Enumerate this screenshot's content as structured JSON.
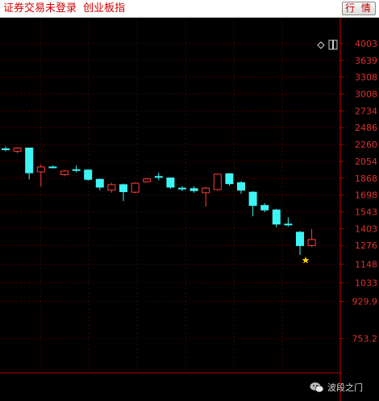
{
  "toolbar": {
    "title": "证券交易未登录",
    "subtitle": "创业板指",
    "quote_label": "行 情"
  },
  "watermark": {
    "text": "波段之门",
    "icon": "wechat-icon"
  },
  "colors": {
    "background": "#000000",
    "axis": "#c00000",
    "grid": "#7a0000",
    "tick_text": "#e03030",
    "up": "#ff3c3c",
    "down": "#3ef5f5",
    "marker": "#ffd700"
  },
  "chart_data": {
    "type": "candlestick",
    "scale": "log",
    "grid": true,
    "y_ticks": [
      "4003",
      "3639",
      "3308",
      "3008",
      "2734",
      "2486",
      "2260",
      "2054",
      "1868",
      "1698",
      "1543",
      "1403",
      "1276",
      "1148",
      "1033",
      "929.9",
      "753.2"
    ],
    "y_range": [
      680,
      4150
    ],
    "candles": [
      {
        "open": 2205,
        "close": 2205,
        "high": 2235,
        "low": 2175
      },
      {
        "open": 2175,
        "close": 2215,
        "high": 2225,
        "low": 2150
      },
      {
        "open": 2215,
        "close": 1925,
        "high": 2215,
        "low": 1855
      },
      {
        "open": 1935,
        "close": 1990,
        "high": 2020,
        "low": 1780
      },
      {
        "open": 1990,
        "close": 1990,
        "high": 2005,
        "low": 1975
      },
      {
        "open": 1905,
        "close": 1945,
        "high": 1955,
        "low": 1890
      },
      {
        "open": 1960,
        "close": 1960,
        "high": 2005,
        "low": 1930
      },
      {
        "open": 1955,
        "close": 1855,
        "high": 1965,
        "low": 1840
      },
      {
        "open": 1855,
        "close": 1775,
        "high": 1865,
        "low": 1745
      },
      {
        "open": 1745,
        "close": 1800,
        "high": 1820,
        "low": 1720
      },
      {
        "open": 1800,
        "close": 1730,
        "high": 1810,
        "low": 1640
      },
      {
        "open": 1725,
        "close": 1815,
        "high": 1825,
        "low": 1715
      },
      {
        "open": 1830,
        "close": 1860,
        "high": 1870,
        "low": 1820
      },
      {
        "open": 1885,
        "close": 1885,
        "high": 1925,
        "low": 1845
      },
      {
        "open": 1870,
        "close": 1775,
        "high": 1875,
        "low": 1760
      },
      {
        "open": 1765,
        "close": 1765,
        "high": 1785,
        "low": 1735
      },
      {
        "open": 1760,
        "close": 1740,
        "high": 1785,
        "low": 1720
      },
      {
        "open": 1720,
        "close": 1765,
        "high": 1780,
        "low": 1590
      },
      {
        "open": 1750,
        "close": 1910,
        "high": 1915,
        "low": 1740
      },
      {
        "open": 1915,
        "close": 1810,
        "high": 1920,
        "low": 1790
      },
      {
        "open": 1820,
        "close": 1745,
        "high": 1835,
        "low": 1710
      },
      {
        "open": 1725,
        "close": 1600,
        "high": 1735,
        "low": 1505
      },
      {
        "open": 1600,
        "close": 1560,
        "high": 1620,
        "low": 1540
      },
      {
        "open": 1560,
        "close": 1440,
        "high": 1570,
        "low": 1415
      },
      {
        "open": 1440,
        "close": 1440,
        "high": 1495,
        "low": 1420
      },
      {
        "open": 1375,
        "close": 1275,
        "high": 1385,
        "low": 1210
      },
      {
        "open": 1275,
        "close": 1320,
        "high": 1400,
        "low": 1265
      }
    ],
    "marker": {
      "index": 25,
      "value": 1180,
      "symbol": "★"
    }
  }
}
